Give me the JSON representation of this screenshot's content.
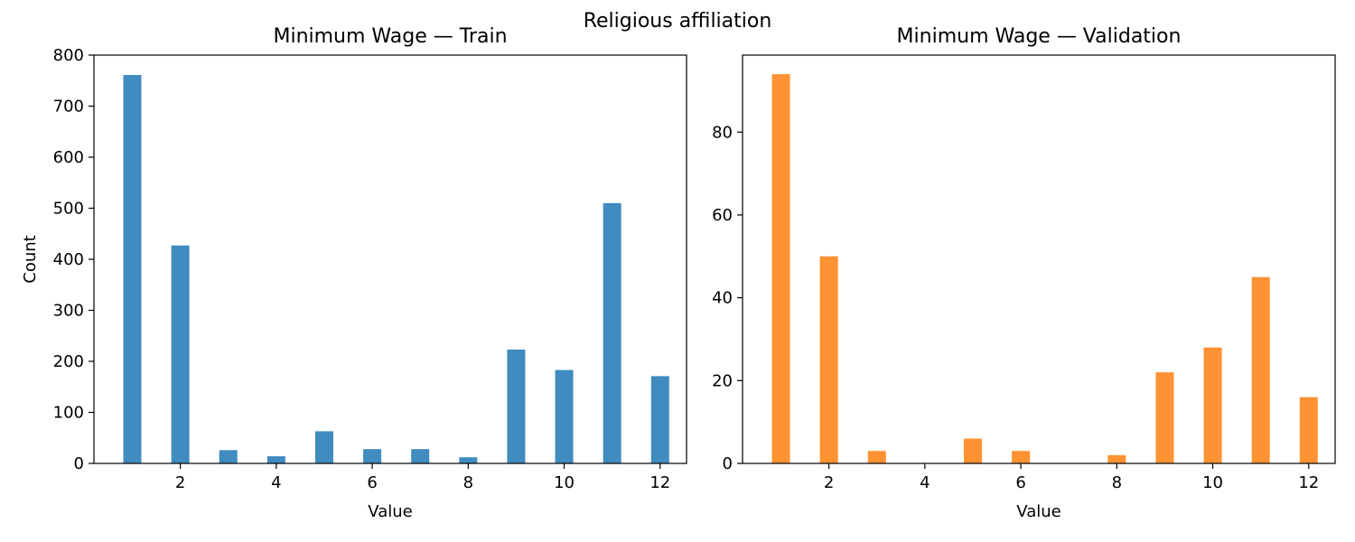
{
  "figure": {
    "suptitle": "Religious affiliation"
  },
  "chart_data": [
    {
      "type": "bar",
      "title": "Minimum Wage — Train",
      "xlabel": "Value",
      "ylabel": "Count",
      "color": "#1f77b4",
      "x": [
        1,
        2,
        3,
        4,
        5,
        6,
        7,
        8,
        9,
        10,
        11,
        12
      ],
      "values": [
        761,
        427,
        26,
        14,
        63,
        28,
        28,
        12,
        223,
        183,
        510,
        171
      ],
      "xlim": [
        0.2,
        12.55
      ],
      "ylim": [
        0,
        800
      ],
      "xticks": [
        2,
        4,
        6,
        8,
        10,
        12
      ],
      "yticks": [
        0,
        100,
        200,
        300,
        400,
        500,
        600,
        700,
        800
      ],
      "grid": false
    },
    {
      "type": "bar",
      "title": "Minimum Wage — Validation",
      "xlabel": "Value",
      "ylabel": "",
      "color": "#ff7f0e",
      "x": [
        1,
        2,
        3,
        4,
        5,
        6,
        7,
        8,
        9,
        10,
        11,
        12
      ],
      "values": [
        94,
        50,
        3,
        0,
        6,
        3,
        0,
        2,
        22,
        28,
        45,
        16
      ],
      "xlim": [
        0.2,
        12.55
      ],
      "ylim": [
        0,
        98.6
      ],
      "xticks": [
        2,
        4,
        6,
        8,
        10,
        12
      ],
      "yticks": [
        0,
        20,
        40,
        60,
        80
      ],
      "grid": false
    }
  ]
}
